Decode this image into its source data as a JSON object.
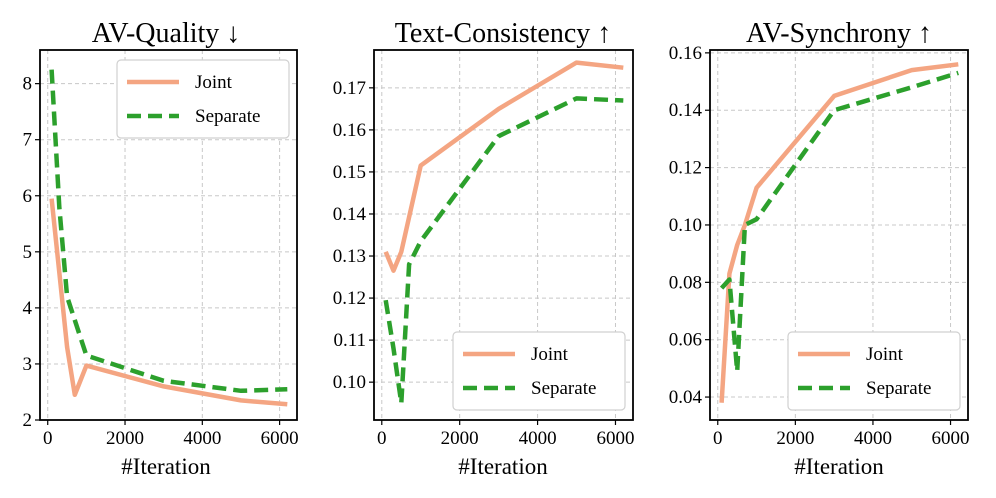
{
  "colors": {
    "joint": "#f4a582",
    "separate": "#2ca02c"
  },
  "chart_data": [
    {
      "type": "line",
      "title": "AV-Quality ↓",
      "xlabel": "#Iteration",
      "ylabel": "",
      "xlim": [
        -200,
        6450
      ],
      "ylim": [
        2.0,
        8.6
      ],
      "xticks": [
        0,
        2000,
        4000,
        6000
      ],
      "yticks": [
        2,
        3,
        4,
        5,
        6,
        7,
        8
      ],
      "ytick_labels": [
        "2",
        "3",
        "4",
        "5",
        "6",
        "7",
        "8"
      ],
      "grid": true,
      "legend_position": "top-right",
      "series": [
        {
          "name": "Joint",
          "style": "solid",
          "color": "#f4a582",
          "x": [
            100,
            500,
            700,
            1000,
            3000,
            5000,
            6200
          ],
          "y": [
            5.95,
            3.3,
            2.45,
            2.97,
            2.6,
            2.35,
            2.28
          ]
        },
        {
          "name": "Separate",
          "style": "dashed",
          "color": "#2ca02c",
          "x": [
            100,
            300,
            500,
            1000,
            3000,
            5000,
            6200
          ],
          "y": [
            8.25,
            5.8,
            4.2,
            3.15,
            2.7,
            2.52,
            2.55
          ]
        }
      ]
    },
    {
      "type": "line",
      "title": "Text-Consistency ↑",
      "xlabel": "#Iteration",
      "ylabel": "",
      "xlim": [
        -200,
        6450
      ],
      "ylim": [
        0.091,
        0.179
      ],
      "xticks": [
        0,
        2000,
        4000,
        6000
      ],
      "yticks": [
        0.1,
        0.11,
        0.12,
        0.13,
        0.14,
        0.15,
        0.16,
        0.17
      ],
      "ytick_labels": [
        "0.10",
        "0.11",
        "0.12",
        "0.13",
        "0.14",
        "0.15",
        "0.16",
        "0.17"
      ],
      "grid": true,
      "legend_position": "bottom-right",
      "series": [
        {
          "name": "Joint",
          "style": "solid",
          "color": "#f4a582",
          "x": [
            100,
            300,
            500,
            1000,
            3000,
            5000,
            6200
          ],
          "y": [
            0.131,
            0.1265,
            0.131,
            0.1515,
            0.165,
            0.176,
            0.1748
          ]
        },
        {
          "name": "Separate",
          "style": "dashed",
          "color": "#2ca02c",
          "x": [
            100,
            300,
            500,
            700,
            1000,
            3000,
            5000,
            6200
          ],
          "y": [
            0.1195,
            0.108,
            0.095,
            0.128,
            0.1335,
            0.1585,
            0.1675,
            0.167
          ]
        }
      ]
    },
    {
      "type": "line",
      "title": "AV-Synchrony ↑",
      "xlabel": "#Iteration",
      "ylabel": "",
      "xlim": [
        -200,
        6450
      ],
      "ylim": [
        0.032,
        0.161
      ],
      "xticks": [
        0,
        2000,
        4000,
        6000
      ],
      "yticks": [
        0.04,
        0.06,
        0.08,
        0.1,
        0.12,
        0.14,
        0.16
      ],
      "ytick_labels": [
        "0.04",
        "0.06",
        "0.08",
        "0.10",
        "0.12",
        "0.14",
        "0.16"
      ],
      "grid": true,
      "legend_position": "bottom-right",
      "series": [
        {
          "name": "Joint",
          "style": "solid",
          "color": "#f4a582",
          "x": [
            100,
            300,
            500,
            700,
            1000,
            3000,
            5000,
            6200
          ],
          "y": [
            0.038,
            0.083,
            0.093,
            0.1,
            0.113,
            0.145,
            0.154,
            0.156
          ]
        },
        {
          "name": "Separate",
          "style": "dashed",
          "color": "#2ca02c",
          "x": [
            100,
            300,
            500,
            700,
            1000,
            3000,
            5000,
            6200
          ],
          "y": [
            0.078,
            0.081,
            0.049,
            0.1,
            0.102,
            0.14,
            0.148,
            0.153
          ]
        }
      ]
    }
  ]
}
